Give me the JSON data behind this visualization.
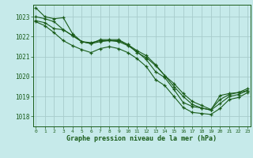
{
  "background_color": "#c6eaea",
  "grid_color": "#a8cccc",
  "line_color": "#1a5c1a",
  "marker_color": "#1a5c1a",
  "xlabel": "Graphe pression niveau de la mer (hPa)",
  "xlabel_color": "#1a5c1a",
  "tick_color": "#1a5c1a",
  "ylim": [
    1017.5,
    1023.6
  ],
  "xlim": [
    -0.3,
    23.3
  ],
  "yticks": [
    1018,
    1019,
    1020,
    1021,
    1022,
    1023
  ],
  "xticks": [
    0,
    1,
    2,
    3,
    4,
    5,
    6,
    7,
    8,
    9,
    10,
    11,
    12,
    13,
    14,
    15,
    16,
    17,
    18,
    19,
    20,
    21,
    22,
    23
  ],
  "curves": [
    [
      1023.45,
      1023.0,
      1022.9,
      1022.95,
      1022.15,
      1021.75,
      1021.65,
      1021.85,
      1021.85,
      1021.85,
      1021.6,
      1021.2,
      1020.95,
      1020.55,
      1020.05,
      1019.65,
      1019.15,
      1018.75,
      1018.55,
      1018.35,
      1018.85,
      1019.1,
      1019.2,
      1019.3
    ],
    [
      1023.0,
      1022.9,
      1022.75,
      1022.35,
      1022.05,
      1021.75,
      1021.65,
      1021.75,
      1021.8,
      1021.75,
      1021.55,
      1021.25,
      1020.85,
      1020.25,
      1019.95,
      1019.35,
      1018.7,
      1018.5,
      1018.42,
      1018.32,
      1018.65,
      1019.0,
      1019.1,
      1019.3
    ],
    [
      1022.8,
      1022.7,
      1022.4,
      1022.35,
      1022.05,
      1021.75,
      1021.7,
      1021.8,
      1021.8,
      1021.8,
      1021.6,
      1021.3,
      1021.05,
      1020.6,
      1020.05,
      1019.5,
      1019.0,
      1018.6,
      1018.42,
      1018.32,
      1019.05,
      1019.15,
      1019.2,
      1019.4
    ],
    [
      1022.75,
      1022.55,
      1022.2,
      1021.8,
      1021.55,
      1021.35,
      1021.2,
      1021.4,
      1021.5,
      1021.4,
      1021.2,
      1020.9,
      1020.5,
      1019.85,
      1019.55,
      1019.0,
      1018.45,
      1018.2,
      1018.15,
      1018.1,
      1018.4,
      1018.85,
      1018.95,
      1019.2
    ]
  ]
}
